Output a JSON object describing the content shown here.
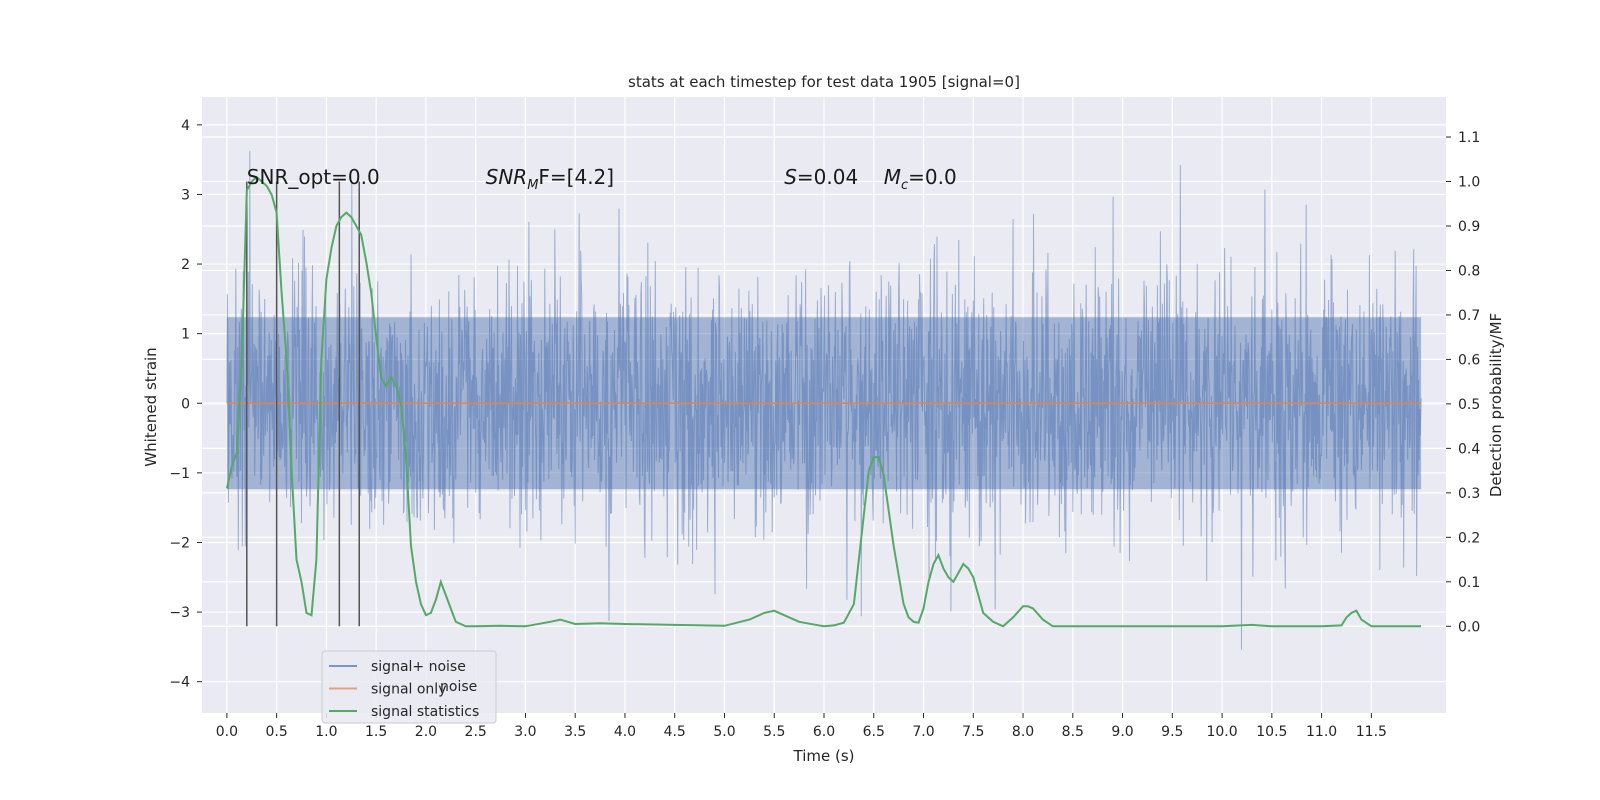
{
  "chart_data": {
    "type": "line",
    "title": "stats at each timestep for test data 1905 [signal=0]",
    "xlabel": "Time (s)",
    "ylabel": "Whitened strain",
    "y2label": "Detection probability/MF",
    "xlim": [
      -0.25,
      12.25
    ],
    "ylim": [
      -4.45,
      4.4
    ],
    "y2lim": [
      -0.195,
      1.19
    ],
    "x_ticks": [
      "0.0",
      "0.5",
      "1.0",
      "1.5",
      "2.0",
      "2.5",
      "3.0",
      "3.5",
      "4.0",
      "4.5",
      "5.0",
      "5.5",
      "6.0",
      "6.5",
      "7.0",
      "7.5",
      "8.0",
      "8.5",
      "9.0",
      "9.5",
      "10.0",
      "10.5",
      "11.0",
      "11.5"
    ],
    "y_ticks": [
      "4",
      "3",
      "2",
      "1",
      "0",
      "−1",
      "−2",
      "−3",
      "−4"
    ],
    "y2_ticks": [
      "1.1",
      "1.0",
      "0.9",
      "0.8",
      "0.7",
      "0.6",
      "0.5",
      "0.4",
      "0.3",
      "0.2",
      "0.1",
      "0.0"
    ],
    "grid": true,
    "legend_position": "lower-left",
    "series": [
      {
        "name": "signal+ noise",
        "color": "#4c72b0",
        "axis": "left",
        "style": "dense-noise",
        "x_range": [
          0.0,
          12.0
        ],
        "typical_band": [
          -1.9,
          1.9
        ],
        "extreme_range": [
          -3.7,
          4.0
        ]
      },
      {
        "name": "signal only",
        "color": "#dd8452",
        "axis": "left",
        "x": [
          0.0,
          12.0
        ],
        "y": [
          0.0,
          0.0
        ]
      },
      {
        "name": "signal statistics",
        "color": "#55a868",
        "axis": "right",
        "x": [
          0.0,
          0.05,
          0.1,
          0.15,
          0.2,
          0.25,
          0.3,
          0.35,
          0.4,
          0.45,
          0.5,
          0.55,
          0.6,
          0.65,
          0.7,
          0.75,
          0.8,
          0.85,
          0.9,
          0.95,
          1.0,
          1.05,
          1.1,
          1.15,
          1.2,
          1.25,
          1.3,
          1.35,
          1.4,
          1.45,
          1.5,
          1.55,
          1.6,
          1.65,
          1.7,
          1.75,
          1.8,
          1.85,
          1.9,
          1.95,
          2.0,
          2.05,
          2.1,
          2.15,
          2.2,
          2.25,
          2.3,
          2.4,
          2.5,
          2.75,
          3.0,
          3.25,
          3.35,
          3.5,
          3.75,
          4.0,
          4.5,
          5.0,
          5.25,
          5.4,
          5.5,
          5.6,
          5.75,
          6.0,
          6.1,
          6.2,
          6.3,
          6.4,
          6.45,
          6.5,
          6.55,
          6.6,
          6.7,
          6.8,
          6.85,
          6.9,
          6.95,
          7.0,
          7.05,
          7.1,
          7.15,
          7.2,
          7.25,
          7.3,
          7.35,
          7.4,
          7.45,
          7.5,
          7.55,
          7.6,
          7.7,
          7.8,
          7.9,
          8.0,
          8.05,
          8.1,
          8.2,
          8.3,
          8.5,
          9.0,
          9.5,
          10.0,
          10.3,
          10.5,
          11.0,
          11.2,
          11.25,
          11.3,
          11.35,
          11.4,
          11.5,
          12.0
        ],
        "y": [
          0.31,
          0.36,
          0.39,
          0.6,
          0.98,
          1.0,
          1.01,
          1.0,
          0.99,
          0.97,
          0.93,
          0.75,
          0.6,
          0.35,
          0.15,
          0.1,
          0.03,
          0.025,
          0.15,
          0.6,
          0.78,
          0.85,
          0.9,
          0.92,
          0.93,
          0.92,
          0.9,
          0.88,
          0.82,
          0.75,
          0.65,
          0.56,
          0.54,
          0.56,
          0.54,
          0.5,
          0.38,
          0.18,
          0.1,
          0.05,
          0.025,
          0.03,
          0.06,
          0.1,
          0.07,
          0.04,
          0.01,
          0.0,
          0.0,
          0.001,
          0.0,
          0.01,
          0.015,
          0.005,
          0.007,
          0.005,
          0.003,
          0.001,
          0.015,
          0.03,
          0.035,
          0.025,
          0.01,
          0.0,
          0.002,
          0.008,
          0.05,
          0.25,
          0.35,
          0.38,
          0.38,
          0.34,
          0.18,
          0.05,
          0.02,
          0.01,
          0.008,
          0.04,
          0.1,
          0.14,
          0.16,
          0.13,
          0.11,
          0.1,
          0.12,
          0.14,
          0.13,
          0.11,
          0.07,
          0.03,
          0.01,
          0.0,
          0.02,
          0.045,
          0.045,
          0.04,
          0.015,
          0.0,
          0.0,
          0.0,
          0.0,
          0.0,
          0.003,
          0.0,
          0.0,
          0.002,
          0.02,
          0.03,
          0.035,
          0.015,
          0.0,
          0.0
        ]
      }
    ],
    "markers": {
      "color": "#555555",
      "x": [
        0.2,
        0.5,
        1.13,
        1.33
      ]
    },
    "annotations": [
      {
        "id": "snr-opt",
        "text": "SNR_opt=0.0",
        "x": 0.2
      },
      {
        "id": "snr-mf",
        "text_main": "SNR",
        "text_sub": "M",
        "text_rest": "F=[4.2]",
        "x": 2.6
      },
      {
        "id": "s-value",
        "text_italic": "S",
        "text_rest": "=0.04",
        "x": 5.6
      },
      {
        "id": "mc-value",
        "text_italic": "M",
        "text_sub": "c",
        "text_rest": "=0.0",
        "x": 6.6
      }
    ],
    "legend": [
      {
        "label": "signal+ noise",
        "color": "#4c72b0"
      },
      {
        "label": "signal only",
        "color": "#dd8452"
      },
      {
        "label": "signal statistics",
        "color": "#55a868"
      }
    ],
    "legend_ghost_text": "noise"
  }
}
